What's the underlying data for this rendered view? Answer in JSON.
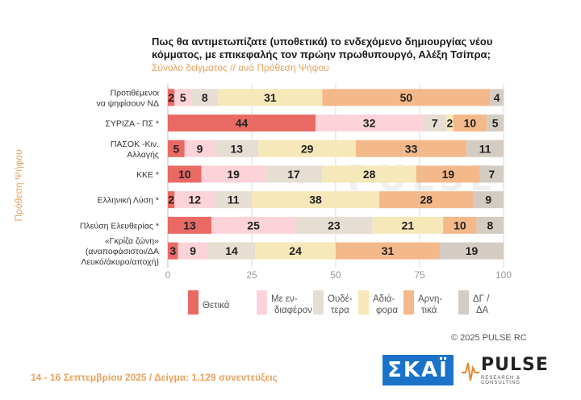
{
  "title": "Πως θα αντιμετωπίζατε (υποθετικά) το ενδεχόμενο δημιουργίας νέου κόμματος, με επικεφαλής τον πρώην πρωθυπουργό, Αλέξη Τσίπρα;",
  "subtitle": "Σύνολο δείγματος // ανά Πρόθεση Ψήφου",
  "copyright": "© 2025 PULSE RC",
  "footer": "14 - 16 Σεπτεμβρίου 2025  /  Δείγμα: 1.129 συνεντεύξεις",
  "watermark": "PULSE",
  "logos": {
    "skai": "ΣΚΑΪ",
    "pulse": "PULSE",
    "pulse_sub": "RESEARCH & CONSULTING"
  },
  "chart_data": {
    "type": "bar",
    "orientation": "horizontal",
    "stacked": true,
    "ylabel": "Πρόθεση Ψήφου",
    "xlim": [
      0,
      100
    ],
    "xticks": [
      0,
      25,
      50,
      75,
      100
    ],
    "categories": [
      [
        "Προτιθέμενοι",
        "να ψηφίσουν ΝΔ"
      ],
      [
        "ΣΥΡΙΖΑ - ΠΣ *"
      ],
      [
        "ΠΑΣΟΚ -Κιν.",
        "Αλλαγής"
      ],
      [
        "ΚΚΕ *"
      ],
      [
        "Ελληνική Λύση *"
      ],
      [
        "Πλεύση Ελευθερίας *"
      ],
      [
        "«Γκρίζα ζώνη»",
        "(αναποφάσιστοι/ΔΑ",
        "Λευκό/άκυρο/αποχή)"
      ]
    ],
    "series": [
      {
        "name": [
          "Θετικά"
        ],
        "color": "#e96a64",
        "values": [
          2,
          44,
          5,
          10,
          2,
          13,
          3
        ]
      },
      {
        "name": [
          "Με εν-",
          "διαφέρον"
        ],
        "color": "#fbd3d8",
        "values": [
          5,
          32,
          9,
          19,
          12,
          25,
          9
        ]
      },
      {
        "name": [
          "Ουδέ-",
          "τερα"
        ],
        "color": "#e6ddd3",
        "values": [
          8,
          7,
          13,
          17,
          11,
          23,
          14
        ]
      },
      {
        "name": [
          "Αδιά-",
          "φορα"
        ],
        "color": "#f6e8b8",
        "values": [
          31,
          2,
          29,
          28,
          38,
          21,
          24
        ]
      },
      {
        "name": [
          "Αρνη-",
          "τικά"
        ],
        "color": "#f3b98a",
        "values": [
          50,
          10,
          33,
          19,
          28,
          10,
          31
        ]
      },
      {
        "name": [
          "ΔΓ /",
          "ΔΑ"
        ],
        "color": "#d4ccc2",
        "values": [
          4,
          5,
          11,
          7,
          9,
          8,
          19
        ]
      }
    ]
  }
}
